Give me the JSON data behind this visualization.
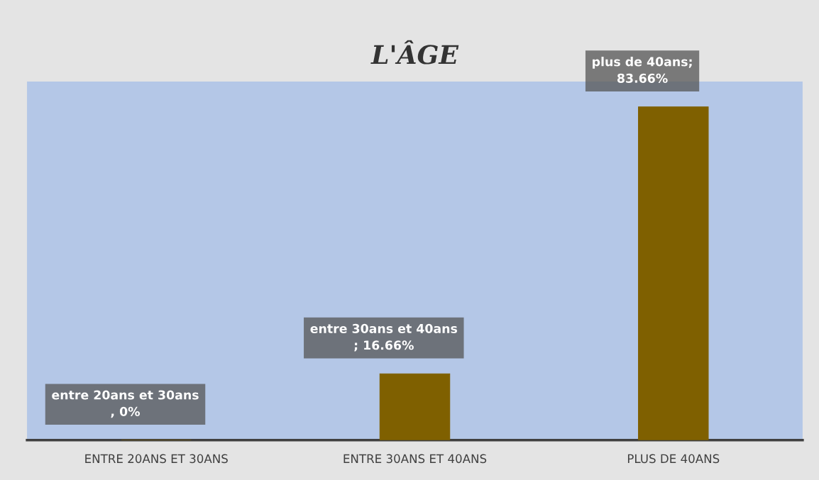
{
  "chart_data": {
    "type": "bar",
    "title": "L'ÂGE",
    "categories": [
      "ENTRE 20ANS ET 30ANS",
      "ENTRE 30ANS ET 40ANS",
      "PLUS DE 40ANS"
    ],
    "values": [
      0,
      16.66,
      83.66
    ],
    "color": "#7f6000",
    "value_labels": [
      "entre 20ans et 30ans\n, 0%",
      "entre 30ans et 40ans\n; 16.66%",
      "plus de 40ans;\n83.66%"
    ],
    "ylim": [
      0,
      90
    ],
    "tick_labels": "x",
    "grid": false,
    "legend": false
  }
}
